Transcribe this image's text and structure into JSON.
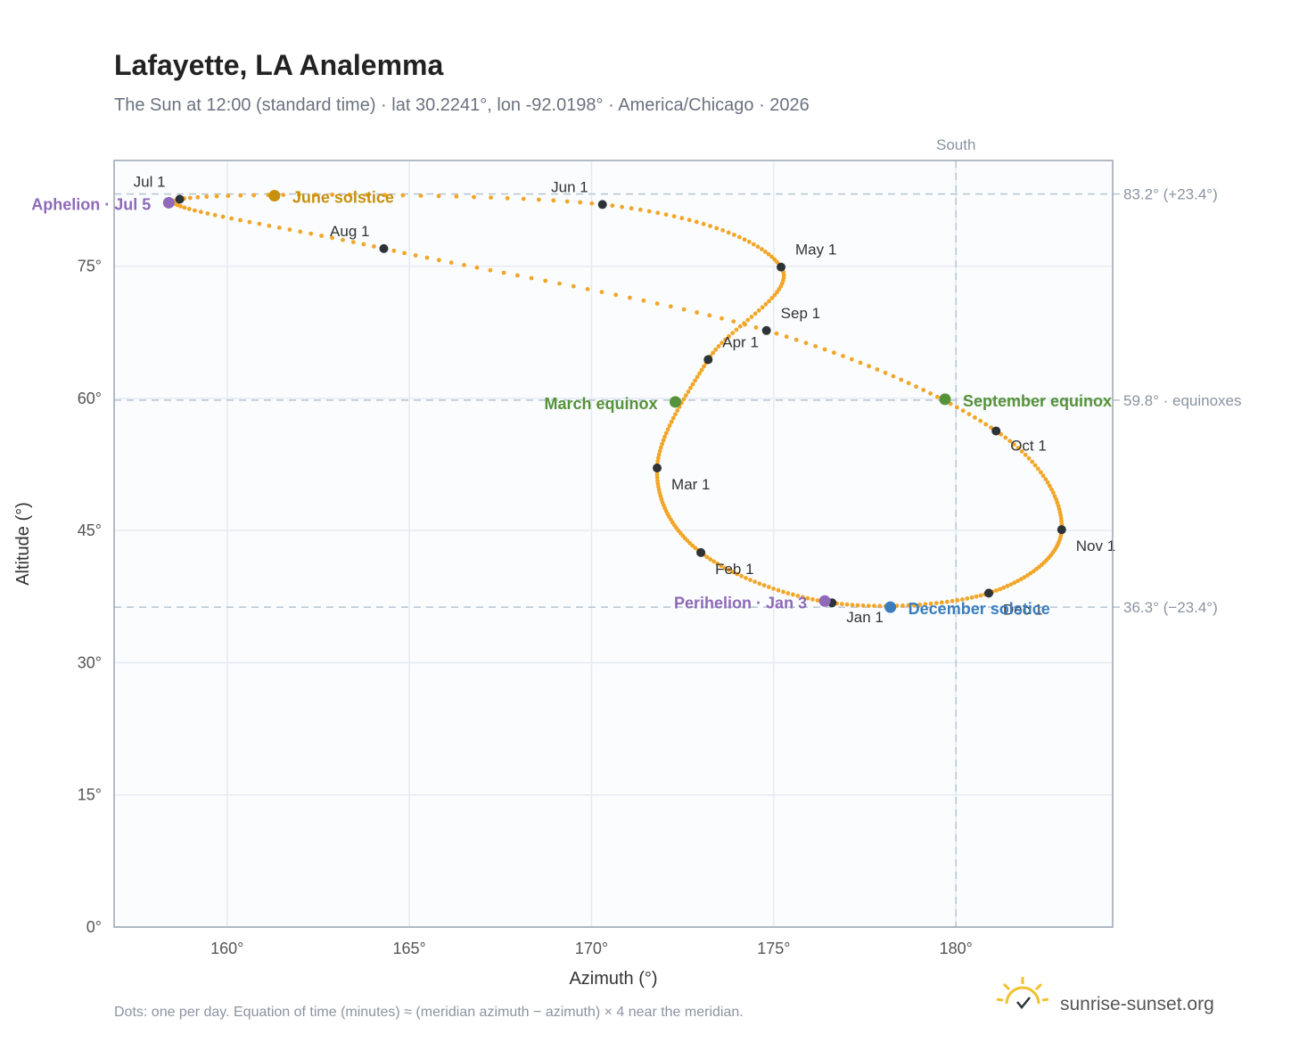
{
  "chart_data": {
    "type": "scatter",
    "title": "Lafayette, LA Analemma",
    "subtitle": "The Sun at 12:00 (standard time) · lat 30.2241°, lon -92.0198° · America/Chicago · 2026",
    "xlabel": "Azimuth (°)",
    "ylabel": "Altitude (°)",
    "xlim": [
      156.9,
      184.3
    ],
    "ylim": [
      0,
      87
    ],
    "x_ticks": [
      160,
      165,
      170,
      175,
      180
    ],
    "x_tick_labels": [
      "160°",
      "165°",
      "170°",
      "175°",
      "180°"
    ],
    "y_ticks": [
      0,
      15,
      30,
      45,
      60,
      75
    ],
    "y_tick_labels": [
      "0°",
      "15°",
      "30°",
      "45°",
      "60°",
      "75°"
    ],
    "grid": true,
    "south": {
      "azimuth": 180,
      "label": "South"
    },
    "reference_lines": [
      {
        "altitude": 83.2,
        "label": "83.2° (+23.4°)"
      },
      {
        "altitude": 59.8,
        "label": "59.8° · equinoxes"
      },
      {
        "altitude": 36.3,
        "label": "36.3° (−23.4°)"
      }
    ],
    "series": [
      {
        "color": "#f2a628",
        "points_note": "one dot per day",
        "path": [
          [
            176.6,
            36.8
          ],
          [
            173.0,
            42.5
          ],
          [
            171.8,
            52.1
          ],
          [
            173.2,
            64.4
          ],
          [
            175.2,
            74.9
          ],
          [
            170.3,
            82.0
          ],
          [
            158.7,
            82.6
          ],
          [
            164.3,
            77.0
          ],
          [
            174.8,
            67.7
          ],
          [
            181.1,
            56.3
          ],
          [
            182.9,
            45.1
          ],
          [
            180.9,
            37.9
          ],
          [
            176.6,
            36.8
          ]
        ]
      }
    ],
    "month_markers": [
      {
        "label": "Jan 1",
        "x": 176.6,
        "y": 36.8
      },
      {
        "label": "Feb 1",
        "x": 173.0,
        "y": 42.5
      },
      {
        "label": "Mar 1",
        "x": 171.8,
        "y": 52.1
      },
      {
        "label": "Apr 1",
        "x": 173.2,
        "y": 64.4
      },
      {
        "label": "May 1",
        "x": 175.2,
        "y": 74.9
      },
      {
        "label": "Jun 1",
        "x": 170.3,
        "y": 82.0
      },
      {
        "label": "Jul 1",
        "x": 158.7,
        "y": 82.6
      },
      {
        "label": "Aug 1",
        "x": 164.3,
        "y": 77.0
      },
      {
        "label": "Sep 1",
        "x": 174.8,
        "y": 67.7
      },
      {
        "label": "Oct 1",
        "x": 181.1,
        "y": 56.3
      },
      {
        "label": "Nov 1",
        "x": 182.9,
        "y": 45.1
      },
      {
        "label": "Dec 1",
        "x": 180.9,
        "y": 37.9
      }
    ],
    "events": [
      {
        "label": "June solstice",
        "x": 161.3,
        "y": 83.0,
        "color": "#c8900d"
      },
      {
        "label": "Aphelion · Jul 5",
        "x": 158.4,
        "y": 82.2,
        "color": "#8e6ab8"
      },
      {
        "label": "March equinox",
        "x": 172.3,
        "y": 59.6,
        "color": "#56923a"
      },
      {
        "label": "September equinox",
        "x": 179.7,
        "y": 59.9,
        "color": "#56923a"
      },
      {
        "label": "Perihelion · Jan 3",
        "x": 176.4,
        "y": 37.0,
        "color": "#8e6ab8"
      },
      {
        "label": "December solstice",
        "x": 178.2,
        "y": 36.3,
        "color": "#3a7ebf"
      }
    ]
  },
  "footnote": "Dots: one per day. Equation of time (minutes) ≈ (meridian azimuth − azimuth) × 4 near the meridian.",
  "brand": {
    "name": "sunrise-sunset.org",
    "logo_icon": "sun-check-icon"
  },
  "colors": {
    "path": "#f2a628",
    "marker": "#2e3338",
    "grid": "#e6ebf1",
    "ref": "#b8c4d0",
    "plot_bg": "#fafcfe"
  }
}
